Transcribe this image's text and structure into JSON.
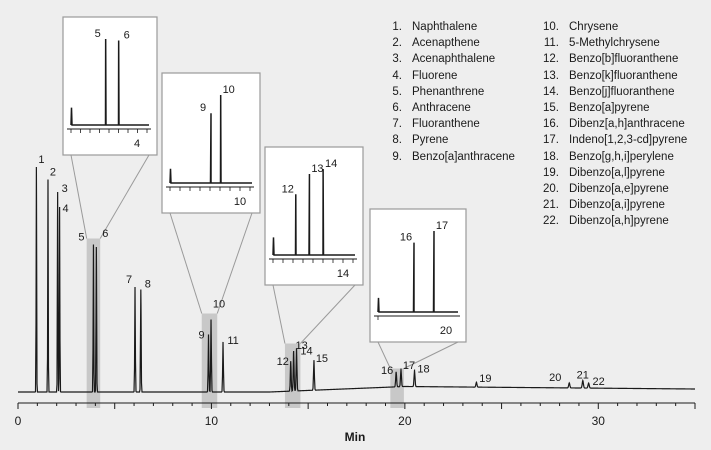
{
  "chart_data": {
    "type": "line",
    "title": "",
    "xlabel": "Min",
    "ylabel": "",
    "xlim": [
      0,
      35
    ],
    "x_ticks": [
      0,
      10,
      20,
      30
    ],
    "grid": false,
    "peaks": [
      {
        "label": "1",
        "name": "Naphthalene",
        "rt": 0.95,
        "height": 0.9
      },
      {
        "label": "2",
        "name": "Acenapthene",
        "rt": 1.55,
        "height": 0.85
      },
      {
        "label": "3",
        "name": "Acenaphthalene",
        "rt": 2.05,
        "height": 0.8
      },
      {
        "label": "4",
        "name": "Fluorene",
        "rt": 2.15,
        "height": 0.74
      },
      {
        "label": "5",
        "name": "Phenanthrene",
        "rt": 3.9,
        "height": 0.59
      },
      {
        "label": "6",
        "name": "Anthracene",
        "rt": 4.05,
        "height": 0.58
      },
      {
        "label": "7",
        "name": "Fluoranthene",
        "rt": 6.05,
        "height": 0.42
      },
      {
        "label": "8",
        "name": "Pyrene",
        "rt": 6.35,
        "height": 0.41
      },
      {
        "label": "9",
        "name": "Benzo[a]anthracene",
        "rt": 9.85,
        "height": 0.23
      },
      {
        "label": "10",
        "name": "Chrysene",
        "rt": 9.98,
        "height": 0.29
      },
      {
        "label": "11",
        "name": "5-Methylchrysene",
        "rt": 10.6,
        "height": 0.2
      },
      {
        "label": "12",
        "name": "Benzo[b]fluoranthene",
        "rt": 14.1,
        "height": 0.12
      },
      {
        "label": "13",
        "name": "Benzo[k]fluoranthene",
        "rt": 14.25,
        "height": 0.16
      },
      {
        "label": "14",
        "name": "Benzo[j]fluoranthene",
        "rt": 14.4,
        "height": 0.17
      },
      {
        "label": "15",
        "name": "Benzo[a]pyrene",
        "rt": 15.3,
        "height": 0.12
      },
      {
        "label": "16",
        "name": "Dibenz[a,h]anthracene",
        "rt": 19.55,
        "height": 0.06
      },
      {
        "label": "17",
        "name": "Indeno[1,2,3-cd]pyrene",
        "rt": 19.8,
        "height": 0.07
      },
      {
        "label": "18",
        "name": "Benzo[g,h,i]perylene",
        "rt": 20.5,
        "height": 0.065
      },
      {
        "label": "19",
        "name": "Dibenzo[a,l]pyrene",
        "rt": 23.7,
        "height": 0.02
      },
      {
        "label": "20",
        "name": "Dibenzo[a,e]pyrene",
        "rt": 28.5,
        "height": 0.02
      },
      {
        "label": "21",
        "name": "Dibenzo[a,i]pyrene",
        "rt": 29.2,
        "height": 0.03
      },
      {
        "label": "22",
        "name": "Dibenzo[a,h]pyrene",
        "rt": 29.5,
        "height": 0.02
      }
    ],
    "insets": [
      {
        "labels": [
          "5",
          "6"
        ],
        "tick_label": "4",
        "xlim": [
          3.5,
          4.4
        ],
        "highlight": [
          3.55,
          4.25
        ]
      },
      {
        "labels": [
          "9",
          "10"
        ],
        "tick_label": "10",
        "xlim": [
          9.3,
          10.4
        ],
        "highlight": [
          9.5,
          10.3
        ]
      },
      {
        "labels": [
          "12",
          "13",
          "14"
        ],
        "tick_label": "14",
        "xlim": [
          13.85,
          14.75
        ],
        "highlight": [
          13.8,
          14.6
        ]
      },
      {
        "labels": [
          "16",
          "17"
        ],
        "tick_label": "20",
        "xlim": [
          19.1,
          20.1
        ],
        "highlight": [
          19.25,
          19.95
        ]
      }
    ]
  }
}
